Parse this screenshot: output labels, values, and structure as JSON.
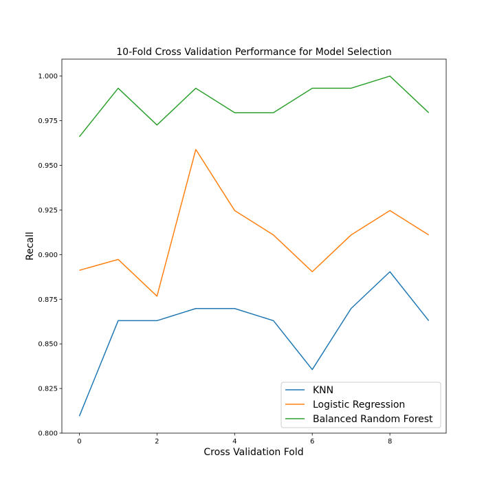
{
  "chart_data": {
    "type": "line",
    "title": "10-Fold Cross Validation Performance for Model Selection",
    "xlabel": "Cross Validation Fold",
    "ylabel": "Recall",
    "x": [
      0,
      1,
      2,
      3,
      4,
      5,
      6,
      7,
      8,
      9
    ],
    "xlim": [
      -0.45,
      9.45
    ],
    "ylim": [
      0.8,
      1.0095
    ],
    "xticks": [
      0,
      2,
      4,
      6,
      8
    ],
    "xtick_labels": [
      "0",
      "2",
      "4",
      "6",
      "8"
    ],
    "yticks": [
      0.8,
      0.825,
      0.85,
      0.875,
      0.9,
      0.925,
      0.95,
      0.975,
      1.0
    ],
    "ytick_labels": [
      "0.800",
      "0.825",
      "0.850",
      "0.875",
      "0.900",
      "0.925",
      "0.950",
      "0.975",
      "1.000"
    ],
    "grid": false,
    "legend_position": "lower-right",
    "series": [
      {
        "name": "KNN",
        "color": "#1f77b4",
        "values": [
          0.8095,
          0.863,
          0.863,
          0.8698,
          0.8698,
          0.863,
          0.8356,
          0.8698,
          0.8904,
          0.863
        ]
      },
      {
        "name": "Logistic Regression",
        "color": "#ff7f0e",
        "values": [
          0.8912,
          0.8973,
          0.8767,
          0.9589,
          0.9247,
          0.911,
          0.8904,
          0.911,
          0.9247,
          0.911
        ]
      },
      {
        "name": "Balanced Random Forest",
        "color": "#2ca02c",
        "values": [
          0.966,
          0.9932,
          0.9726,
          0.9932,
          0.9795,
          0.9795,
          0.9932,
          0.9932,
          1.0,
          0.9795
        ]
      }
    ]
  }
}
